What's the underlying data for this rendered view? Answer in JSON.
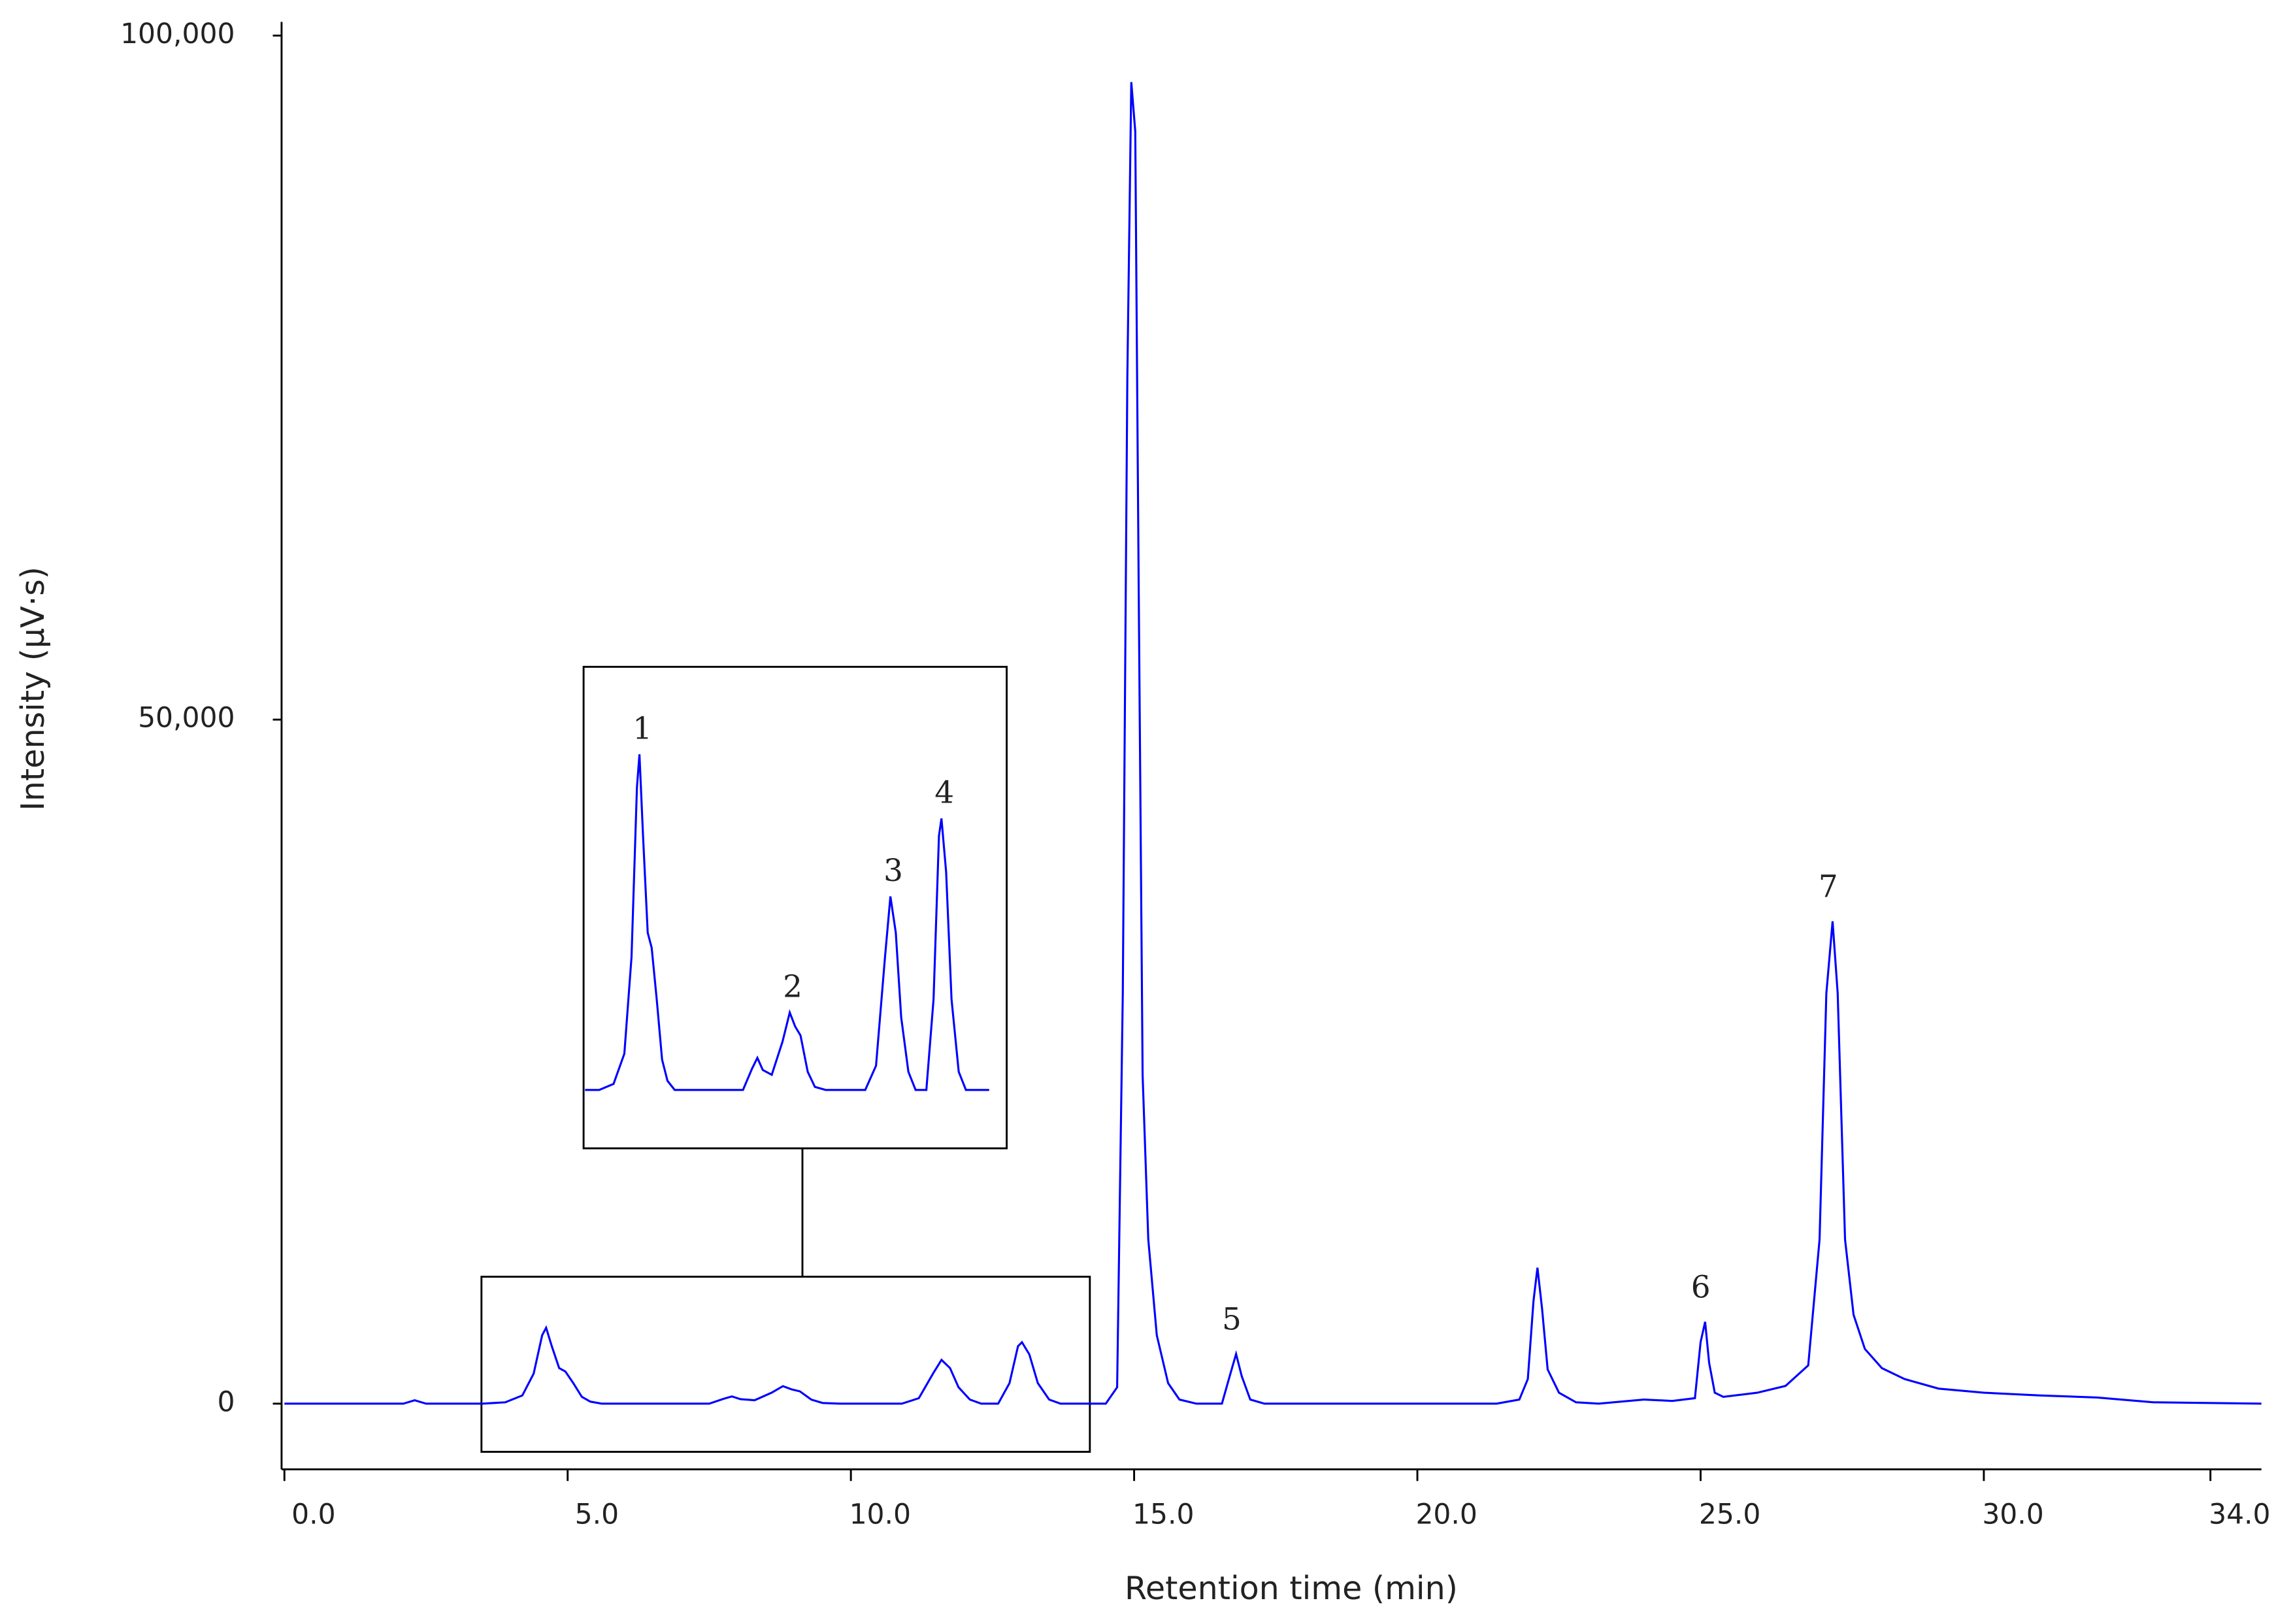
{
  "chart_data": {
    "type": "line",
    "x_label": "Retention time (min)",
    "y_label": "Intensity (µV·s)",
    "xlim": [
      -0.05,
      34.9
    ],
    "ylim": [
      -4800,
      101000
    ],
    "xticks": [
      {
        "value": 0,
        "label": "0.0"
      },
      {
        "value": 5,
        "label": "5.0"
      },
      {
        "value": 10,
        "label": "10.0"
      },
      {
        "value": 15,
        "label": "15.0"
      },
      {
        "value": 20,
        "label": "20.0"
      },
      {
        "value": 25,
        "label": "25.0"
      },
      {
        "value": 30,
        "label": "30.0"
      },
      {
        "value": 34,
        "label": "34.0"
      }
    ],
    "yticks": [
      0,
      {
        "value": 50000,
        "label": "50,000"
      },
      {
        "value": 100000,
        "label": "100,000"
      }
    ],
    "series": [
      {
        "color": "#0000ff",
        "x": [
          0,
          2.1,
          2.3,
          2.5,
          3.5,
          3.9,
          4.2,
          4.4,
          4.55,
          4.62,
          4.72,
          4.85,
          4.96,
          5.1,
          5.25,
          5.4,
          5.6,
          7.5,
          7.75,
          7.9,
          8.05,
          8.3,
          8.6,
          8.8,
          8.95,
          9.1,
          9.3,
          9.5,
          9.8,
          10.9,
          11.2,
          11.45,
          11.6,
          11.75,
          11.9,
          12.1,
          12.3,
          12.6,
          12.8,
          12.95,
          13.02,
          13.15,
          13.3,
          13.5,
          13.7,
          14.5,
          14.7,
          14.8,
          14.88,
          14.95,
          15.02,
          15.08,
          15.15,
          15.25,
          15.4,
          15.6,
          15.8,
          16.1,
          16.55,
          16.7,
          16.8,
          16.9,
          17.05,
          17.3,
          21.4,
          21.8,
          21.95,
          22.05,
          22.12,
          22.2,
          22.3,
          22.5,
          22.8,
          23.2,
          24.0,
          24.5,
          24.9,
          25.0,
          25.08,
          25.15,
          25.25,
          25.4,
          26.0,
          26.5,
          26.9,
          27.1,
          27.22,
          27.33,
          27.42,
          27.55,
          27.7,
          27.9,
          28.2,
          28.6,
          29.2,
          30.0,
          31.0,
          32.0,
          33.0,
          34.9
        ],
        "values": [
          0,
          0,
          250,
          0,
          0,
          100,
          600,
          2200,
          5000,
          5550,
          4200,
          2600,
          2350,
          1500,
          500,
          150,
          0,
          0,
          350,
          530,
          330,
          250,
          800,
          1280,
          1050,
          900,
          300,
          50,
          0,
          0,
          400,
          2200,
          3200,
          2600,
          1200,
          300,
          0,
          0,
          1500,
          4200,
          4490,
          3600,
          1500,
          300,
          0,
          0,
          1200,
          30000,
          75000,
          96600,
          93000,
          60000,
          24000,
          12000,
          5000,
          1500,
          300,
          0,
          0,
          2200,
          3630,
          2000,
          300,
          0,
          0,
          300,
          1800,
          7500,
          9940,
          7000,
          2500,
          800,
          100,
          0,
          300,
          200,
          400,
          4500,
          5980,
          3000,
          800,
          500,
          800,
          1300,
          2800,
          12000,
          30000,
          35260,
          30000,
          12000,
          6500,
          4000,
          2600,
          1800,
          1100,
          800,
          600,
          450,
          100,
          0
        ]
      }
    ],
    "annotations": [
      {
        "text": "5",
        "x": 16.8
      },
      {
        "text": "6",
        "x": 25.08
      },
      {
        "text": "7",
        "x": 27.33
      }
    ],
    "inset_annotations": [
      {
        "text": "1",
        "x": 4.62
      },
      {
        "text": "2",
        "x": 8.8
      },
      {
        "text": "3",
        "x": 11.6
      },
      {
        "text": "4",
        "x": 13.02
      }
    ]
  }
}
